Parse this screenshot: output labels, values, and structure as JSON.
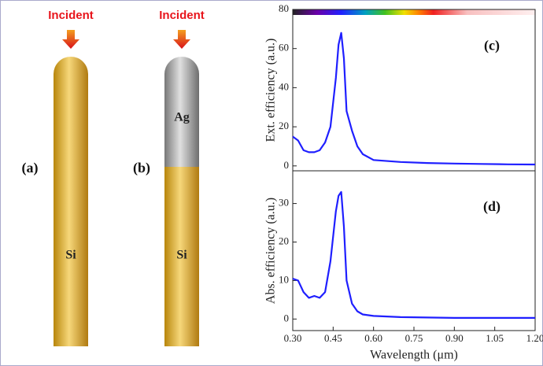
{
  "diagram": {
    "panels": [
      {
        "label": "(a)",
        "incident": "Incident",
        "segments": [
          "Si"
        ]
      },
      {
        "label": "(b)",
        "incident": "Incident",
        "segments": [
          "Ag",
          "Si"
        ]
      }
    ]
  },
  "chart_data": [
    {
      "type": "line",
      "annotation": "(c)",
      "y_label": "Ext. efficiency (a.u.)",
      "xlim": [
        0.3,
        1.2
      ],
      "ylim": [
        -2.5,
        80
      ],
      "yticks": [
        0,
        20,
        40,
        60,
        80
      ],
      "x": [
        0.3,
        0.32,
        0.34,
        0.36,
        0.38,
        0.4,
        0.42,
        0.44,
        0.46,
        0.47,
        0.48,
        0.49,
        0.5,
        0.52,
        0.54,
        0.56,
        0.6,
        0.7,
        0.8,
        0.9,
        1.0,
        1.1,
        1.2
      ],
      "series": [
        {
          "color": "#1f1fff",
          "values": [
            15,
            13,
            8,
            7,
            7,
            8,
            12,
            20,
            45,
            62,
            68,
            55,
            28,
            18,
            10,
            6,
            3,
            2,
            1.5,
            1.2,
            1,
            0.8,
            0.7
          ]
        }
      ]
    },
    {
      "type": "line",
      "annotation": "(d)",
      "y_label": "Abs. efficiency (a.u.)",
      "x_label": "Wavelength (μm)",
      "xlim": [
        0.3,
        1.2
      ],
      "ylim": [
        -3,
        38.5
      ],
      "yticks": [
        0,
        10,
        20,
        30
      ],
      "xticks": [
        {
          "value": 0.3,
          "label": "0.30"
        },
        {
          "value": 0.45,
          "label": "0.45"
        },
        {
          "value": 0.6,
          "label": "0.60"
        },
        {
          "value": 0.75,
          "label": "0.75"
        },
        {
          "value": 0.9,
          "label": "0.90"
        },
        {
          "value": 1.05,
          "label": "1.05"
        },
        {
          "value": 1.2,
          "label": "1.20"
        }
      ],
      "x": [
        0.3,
        0.32,
        0.34,
        0.36,
        0.38,
        0.4,
        0.42,
        0.44,
        0.46,
        0.47,
        0.48,
        0.49,
        0.5,
        0.52,
        0.54,
        0.56,
        0.6,
        0.7,
        0.8,
        0.9,
        1.0,
        1.1,
        1.2
      ],
      "series": [
        {
          "color": "#1f1fff",
          "values": [
            10.5,
            10,
            7,
            5.5,
            6,
            5.5,
            7,
            15,
            28,
            32,
            33,
            24,
            10,
            4,
            2,
            1.2,
            0.8,
            0.5,
            0.4,
            0.3,
            0.3,
            0.3,
            0.3
          ]
        }
      ]
    }
  ]
}
